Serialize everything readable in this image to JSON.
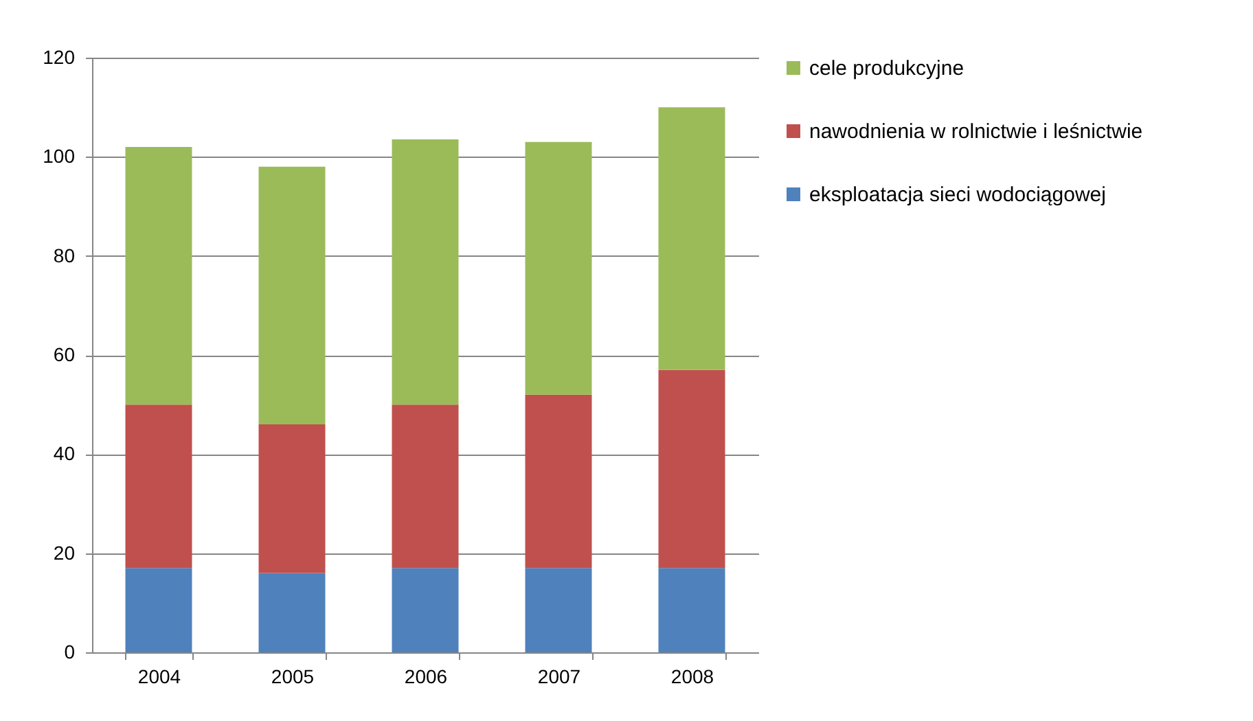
{
  "chart_data": {
    "type": "bar",
    "stacked": true,
    "categories": [
      "2004",
      "2005",
      "2006",
      "2007",
      "2008"
    ],
    "series": [
      {
        "name": "eksploatacja sieci wodociągowej",
        "color": "#4f81bd",
        "values": [
          17,
          16,
          17,
          17,
          17
        ]
      },
      {
        "name": "nawodnienia w rolnictwie i leśnictwie",
        "color": "#c0504d",
        "values": [
          33,
          30,
          33,
          35,
          40
        ]
      },
      {
        "name": "cele produkcyjne",
        "color": "#9bbb59",
        "values": [
          52,
          52,
          53.5,
          51,
          53
        ]
      }
    ],
    "ylim": [
      0,
      120
    ],
    "yticks": [
      0,
      20,
      40,
      60,
      80,
      100,
      120
    ],
    "grid": "y",
    "legend": "right"
  }
}
